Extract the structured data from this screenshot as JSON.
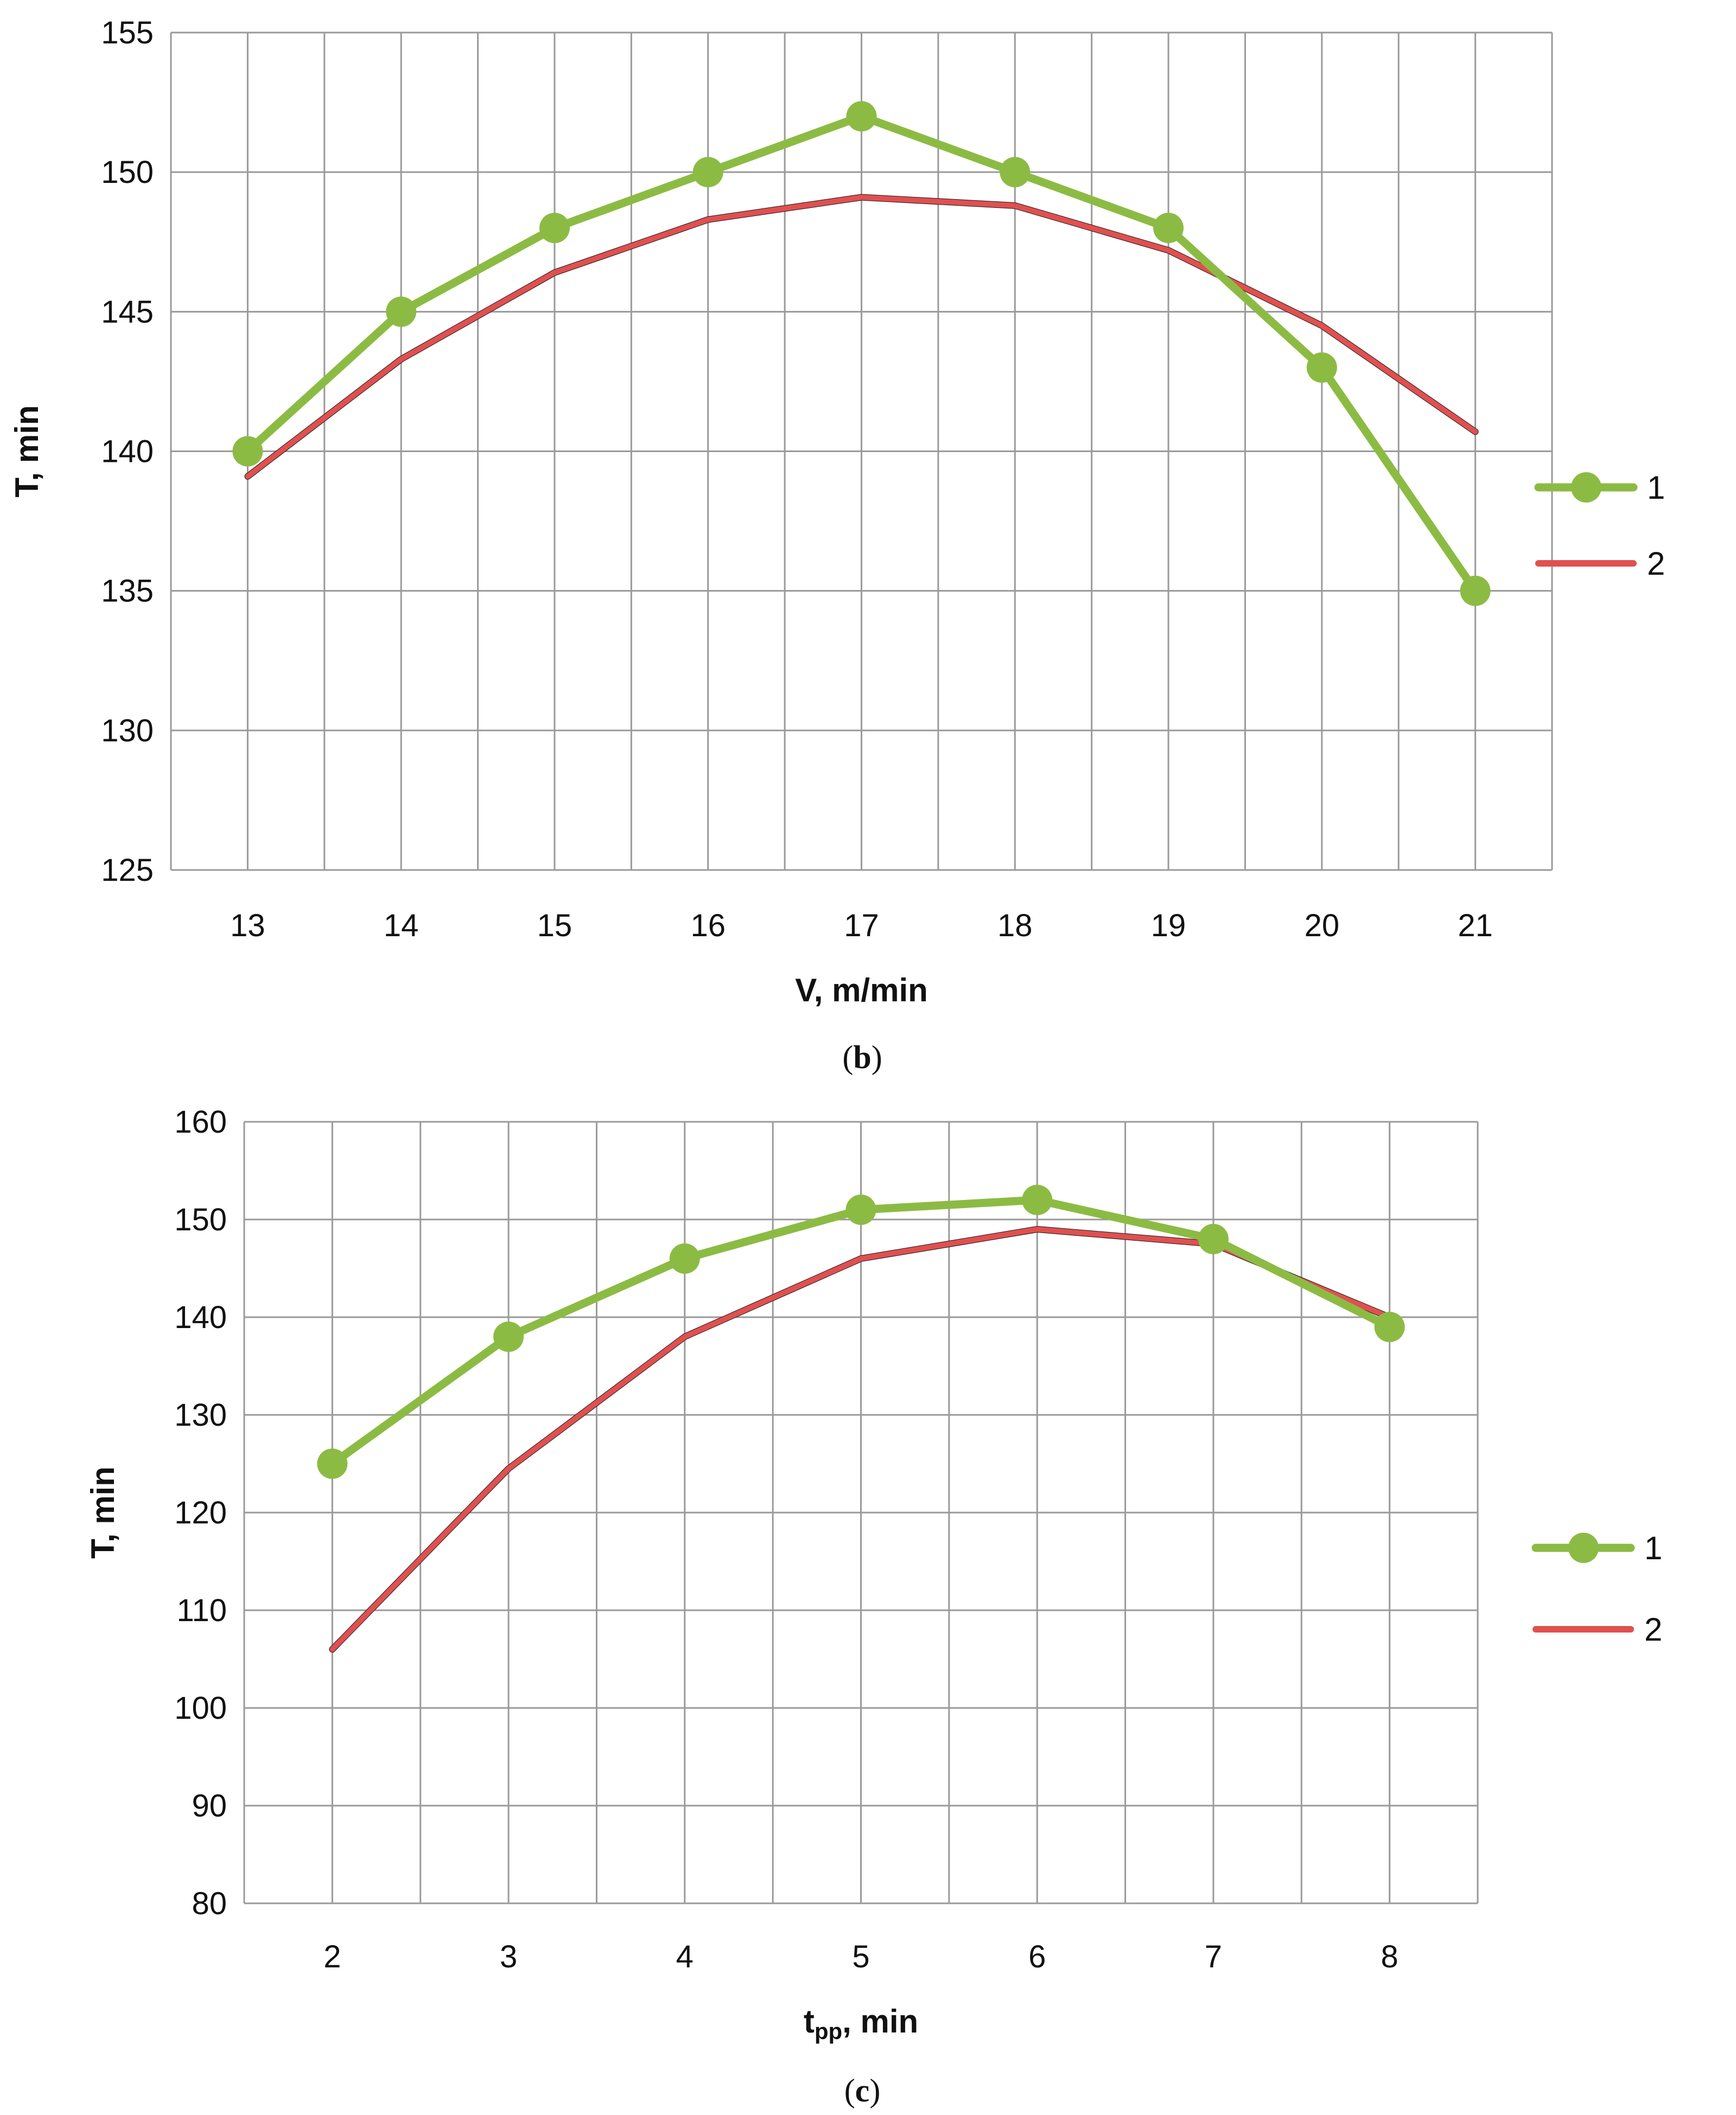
{
  "chart_data": [
    {
      "type": "line",
      "panel": "b",
      "caption_open": "(",
      "caption_letter": "b",
      "caption_close": ")",
      "xlabel": "V, m/min",
      "ylabel": "T, min",
      "x": [
        13,
        14,
        15,
        16,
        17,
        18,
        19,
        20,
        21
      ],
      "ylim": [
        125,
        155
      ],
      "yticks": [
        125,
        130,
        135,
        140,
        145,
        150,
        155
      ],
      "grid": true,
      "legend_position": "right",
      "series": [
        {
          "name": "1",
          "color": "#8cbb44",
          "markers": true,
          "values": [
            140,
            145,
            148,
            150,
            152,
            150,
            148,
            143,
            135
          ]
        },
        {
          "name": "2",
          "color": "#e05050",
          "markers": false,
          "values": [
            139.1,
            143.3,
            146.4,
            148.3,
            149.1,
            148.8,
            147.2,
            144.5,
            140.7
          ]
        }
      ]
    },
    {
      "type": "line",
      "panel": "c",
      "caption_open": "(",
      "caption_letter": "c",
      "caption_close": ")",
      "xlabel_main": "t",
      "xlabel_sub": "pp",
      "xlabel_rest": ", min",
      "ylabel": "T, min",
      "x": [
        2,
        3,
        4,
        5,
        6,
        7,
        8
      ],
      "ylim": [
        80,
        160
      ],
      "yticks": [
        80,
        90,
        100,
        110,
        120,
        130,
        140,
        150,
        160
      ],
      "grid": true,
      "legend_position": "right",
      "series": [
        {
          "name": "1",
          "color": "#8cbb44",
          "markers": true,
          "values": [
            125,
            138,
            146,
            151,
            152,
            148,
            139
          ]
        },
        {
          "name": "2",
          "color": "#e05050",
          "markers": false,
          "values": [
            106,
            124.5,
            138,
            146,
            149,
            147.5,
            140
          ]
        }
      ]
    }
  ]
}
